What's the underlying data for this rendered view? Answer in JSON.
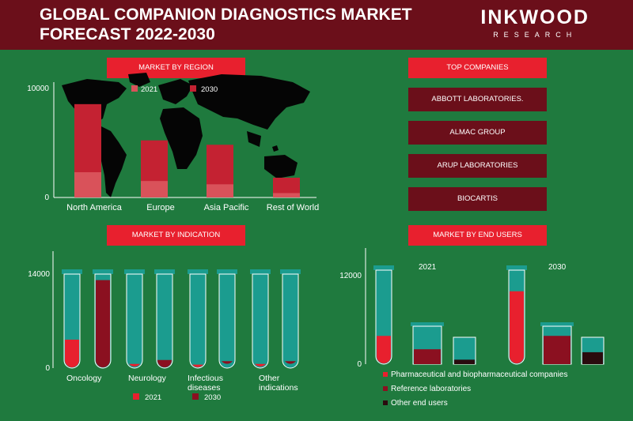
{
  "header": {
    "title": "GLOBAL COMPANION DIAGNOSTICS MARKET FORECAST 2022-2030",
    "brand": "INKWOOD",
    "brand_sub": "RESEARCH"
  },
  "colors": {
    "bg": "#1f7a3e",
    "header": "#6b0f1a",
    "accent": "#e8202e",
    "teal": "#1b9c8f",
    "dark": "#2a0b0e"
  },
  "sections": {
    "region": "MARKET BY REGION",
    "companies": "TOP COMPANIES",
    "indication": "MARKET BY INDICATION",
    "end_users": "MARKET BY END USERS"
  },
  "companies": [
    "ABBOTT LABORATORIES.",
    "ALMAC GROUP",
    "ARUP LABORATORIES",
    "BIOCARTIS"
  ],
  "chart_data": [
    {
      "type": "bar",
      "title": "MARKET BY REGION",
      "categories": [
        "North America",
        "Europe",
        "Asia Pacific",
        "Rest of World"
      ],
      "series": [
        {
          "name": "2021",
          "values": [
            2300,
            1500,
            1200,
            400
          ]
        },
        {
          "name": "2030",
          "values": [
            8500,
            5200,
            4800,
            1800
          ]
        }
      ],
      "yticks": [
        "10000",
        "0"
      ],
      "ylim": [
        0,
        10000
      ],
      "legend": "top"
    },
    {
      "type": "bar",
      "title": "MARKET BY INDICATION",
      "categories": [
        "Oncology",
        "Neurology",
        "Infectious diseases",
        "Other indications"
      ],
      "series": [
        {
          "name": "2021",
          "values": [
            4200,
            500,
            400,
            500
          ]
        },
        {
          "name": "2030",
          "values": [
            13000,
            1200,
            900,
            900
          ]
        }
      ],
      "yticks": [
        "14000",
        "0"
      ],
      "ylim": [
        0,
        14000
      ],
      "legend": "bottom"
    },
    {
      "type": "bar",
      "title": "MARKET BY END USERS",
      "groups": [
        "2021",
        "2030"
      ],
      "series": [
        {
          "name": "Pharmaceutical and biopharmaceutical companies",
          "values": [
            3800,
            9800
          ]
        },
        {
          "name": "Reference laboratories",
          "values": [
            2000,
            3800
          ]
        },
        {
          "name": "Other end users",
          "values": [
            600,
            1600
          ]
        }
      ],
      "yticks": [
        "12000",
        "0"
      ],
      "ylim": [
        0,
        12000
      ],
      "legend": "bottom"
    }
  ]
}
